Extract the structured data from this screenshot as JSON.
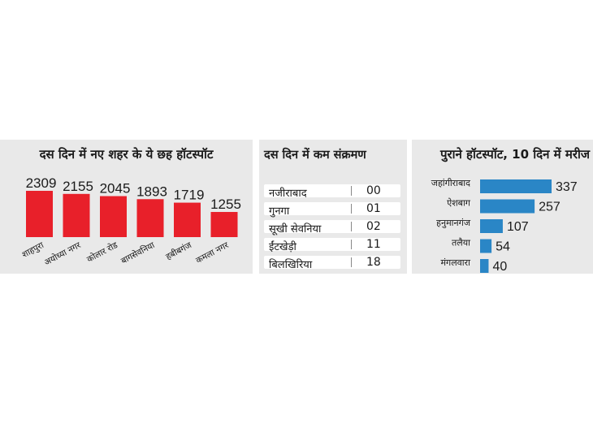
{
  "panel1": {
    "title": "दस दिन में नए शहर के ये छह हॉटस्पॉट"
  },
  "panel2": {
    "title": "दस दिन में कम संक्रमण",
    "rows": [
      {
        "name": "नजीराबाद",
        "value": "00"
      },
      {
        "name": "गुनगा",
        "value": "01"
      },
      {
        "name": "सूखी सेवनिया",
        "value": "02"
      },
      {
        "name": "ईंटखेड़ी",
        "value": "11"
      },
      {
        "name": "बिलखिरिया",
        "value": "18"
      }
    ]
  },
  "panel3": {
    "title": "पुराने  हॉटस्पॉट, 10 दिन में मरीज"
  },
  "colors": {
    "red": "#e8202a",
    "blue": "#2a86c6",
    "panel_bg": "#e9e9e9"
  },
  "chart_data": [
    {
      "type": "bar",
      "title": "दस दिन में नए शहर के ये छह हॉटस्पॉट",
      "categories": [
        "शाहपुरा",
        "अयोध्या नगर",
        "कोलार रोड",
        "बागसेवनिया",
        "हबीबगंज",
        "कमला नगर"
      ],
      "values": [
        2309,
        2155,
        2045,
        1893,
        1719,
        1255
      ],
      "color": "#e8202a"
    },
    {
      "type": "bar",
      "orientation": "horizontal",
      "title": "पुराने  हॉटस्पॉट, 10 दिन में मरीज",
      "categories": [
        "जहांगीराबाद",
        "ऐशबाग",
        "हनुमानगंज",
        "तलैया",
        "मंगलवारा"
      ],
      "values": [
        337,
        257,
        107,
        54,
        40
      ],
      "color": "#2a86c6"
    }
  ]
}
